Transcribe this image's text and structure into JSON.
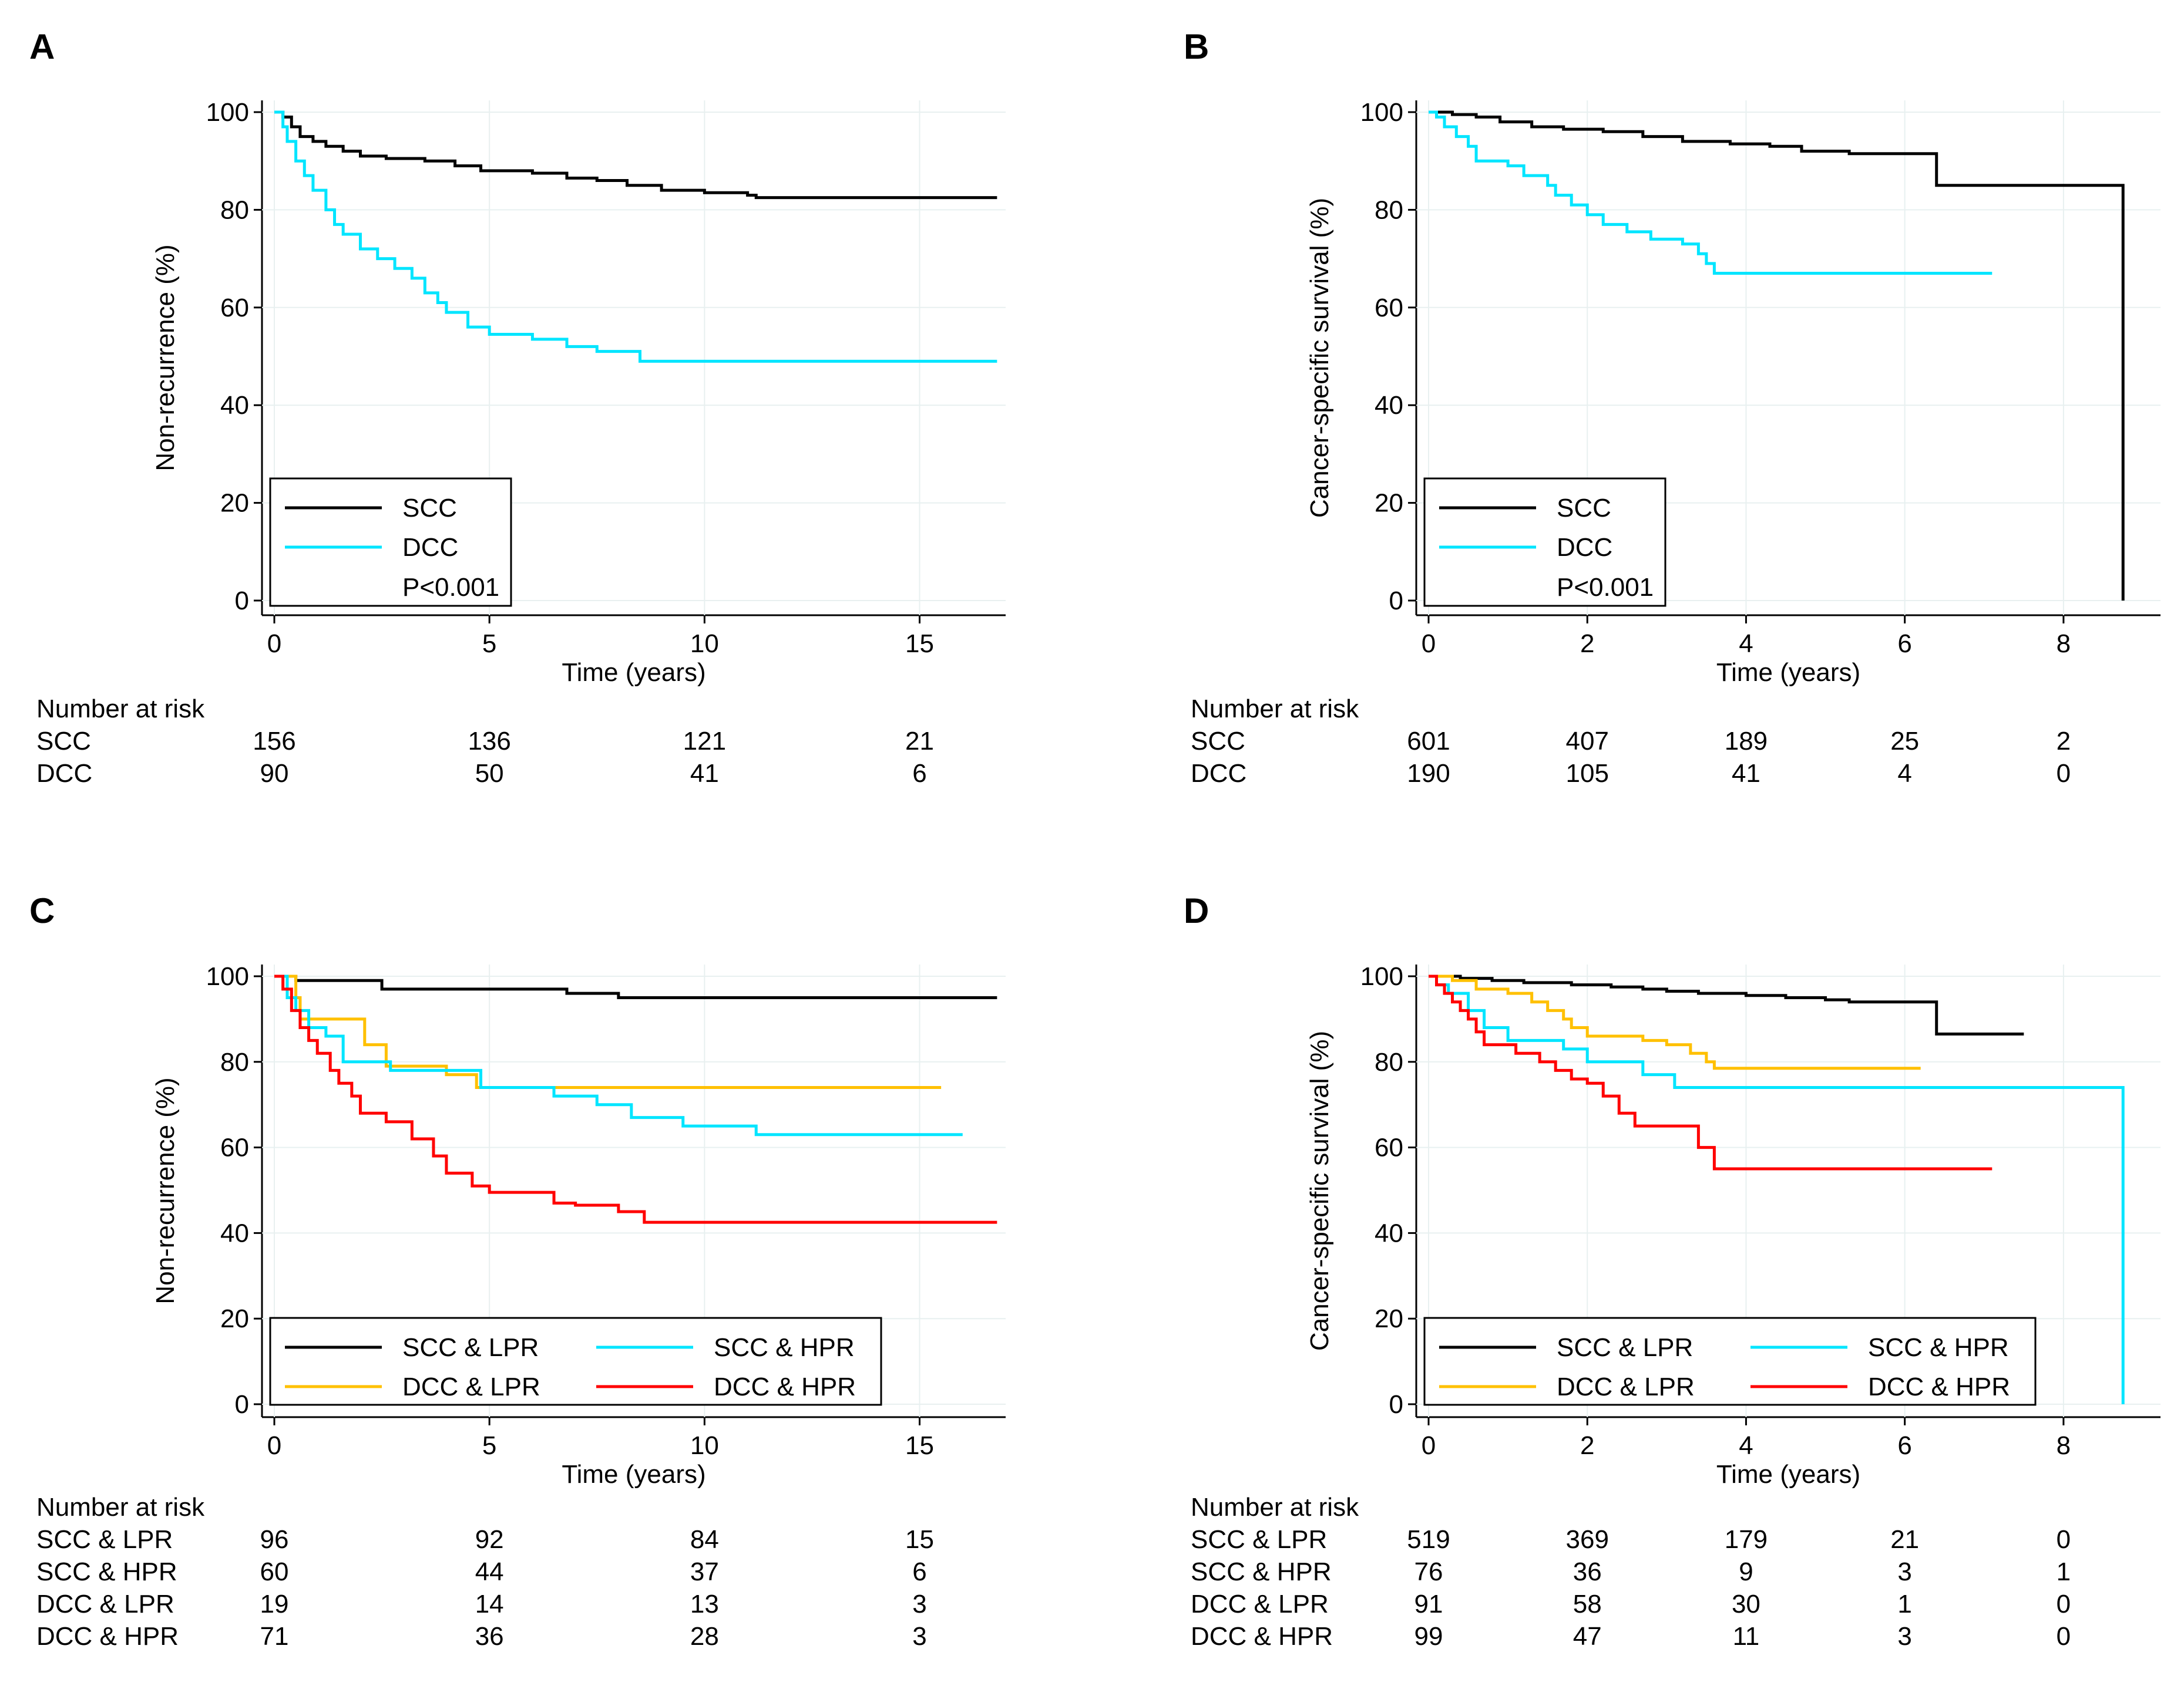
{
  "chart_data": [
    {
      "panel": "A",
      "type": "line",
      "subtype": "kaplan-meier",
      "ylabel": "Non-recurrence (%)",
      "xlabel": "Time (years)",
      "xlim": [
        0,
        17
      ],
      "ylim": [
        0,
        100
      ],
      "xticks": [
        0,
        5,
        10,
        15
      ],
      "yticks": [
        0,
        20,
        40,
        60,
        80,
        100
      ],
      "legend": {
        "placement": "bottom-left",
        "columns": 1,
        "note": "P<0.001"
      },
      "series": [
        {
          "name": "SCC",
          "color": "#000000",
          "steps": [
            [
              0,
              100
            ],
            [
              0.2,
              99
            ],
            [
              0.4,
              97
            ],
            [
              0.6,
              95
            ],
            [
              0.9,
              94
            ],
            [
              1.2,
              93
            ],
            [
              1.6,
              92
            ],
            [
              2.0,
              91
            ],
            [
              2.6,
              90.5
            ],
            [
              3.5,
              90
            ],
            [
              4.2,
              89
            ],
            [
              4.8,
              88
            ],
            [
              6.0,
              87.5
            ],
            [
              6.8,
              86.5
            ],
            [
              7.5,
              86
            ],
            [
              8.2,
              85
            ],
            [
              9.0,
              84
            ],
            [
              10.0,
              83.5
            ],
            [
              11.0,
              83
            ],
            [
              11.2,
              82.5
            ],
            [
              16.8,
              82.5
            ]
          ]
        },
        {
          "name": "DCC",
          "color": "#00E5FF",
          "steps": [
            [
              0,
              100
            ],
            [
              0.2,
              97
            ],
            [
              0.3,
              94
            ],
            [
              0.5,
              90
            ],
            [
              0.7,
              87
            ],
            [
              0.9,
              84
            ],
            [
              1.2,
              80
            ],
            [
              1.4,
              77
            ],
            [
              1.6,
              75
            ],
            [
              2.0,
              72
            ],
            [
              2.4,
              70
            ],
            [
              2.8,
              68
            ],
            [
              3.2,
              66
            ],
            [
              3.5,
              63
            ],
            [
              3.8,
              61
            ],
            [
              4.0,
              59
            ],
            [
              4.5,
              56
            ],
            [
              5.0,
              54.5
            ],
            [
              6.0,
              53.5
            ],
            [
              6.8,
              52
            ],
            [
              7.5,
              51
            ],
            [
              8.5,
              49
            ],
            [
              16.8,
              49
            ]
          ]
        }
      ],
      "risk_table": {
        "header": "Number at risk",
        "times": [
          0,
          5,
          10,
          15
        ],
        "rows": [
          {
            "label": "SCC",
            "values": [
              "156",
              "136",
              "121",
              "21"
            ]
          },
          {
            "label": "DCC",
            "values": [
              "90",
              "50",
              "41",
              "6"
            ]
          }
        ]
      }
    },
    {
      "panel": "B",
      "type": "line",
      "subtype": "kaplan-meier",
      "ylabel": "Cancer-specific survival (%)",
      "xlabel": "Time (years)",
      "xlim": [
        0,
        9
      ],
      "ylim": [
        0,
        100
      ],
      "xticks": [
        0,
        2,
        4,
        6,
        8
      ],
      "yticks": [
        0,
        20,
        40,
        60,
        80,
        100
      ],
      "legend": {
        "placement": "bottom-left",
        "columns": 1,
        "note": "P<0.001"
      },
      "series": [
        {
          "name": "SCC",
          "color": "#000000",
          "steps": [
            [
              0,
              100
            ],
            [
              0.3,
              99.5
            ],
            [
              0.6,
              99
            ],
            [
              0.9,
              98
            ],
            [
              1.3,
              97
            ],
            [
              1.7,
              96.5
            ],
            [
              2.2,
              96
            ],
            [
              2.7,
              95
            ],
            [
              3.2,
              94
            ],
            [
              3.8,
              93.5
            ],
            [
              4.3,
              93
            ],
            [
              4.7,
              92
            ],
            [
              5.3,
              91.5
            ],
            [
              6.4,
              85
            ],
            [
              8.75,
              85
            ],
            [
              8.75,
              0
            ]
          ]
        },
        {
          "name": "DCC",
          "color": "#00E5FF",
          "steps": [
            [
              0,
              100
            ],
            [
              0.1,
              99
            ],
            [
              0.2,
              97
            ],
            [
              0.35,
              95
            ],
            [
              0.5,
              93
            ],
            [
              0.6,
              90
            ],
            [
              1.0,
              89
            ],
            [
              1.2,
              87
            ],
            [
              1.5,
              85
            ],
            [
              1.6,
              83
            ],
            [
              1.8,
              81
            ],
            [
              2.0,
              79
            ],
            [
              2.2,
              77
            ],
            [
              2.5,
              75.5
            ],
            [
              2.8,
              74
            ],
            [
              3.2,
              73
            ],
            [
              3.4,
              71
            ],
            [
              3.5,
              69
            ],
            [
              3.6,
              67
            ],
            [
              7.1,
              67
            ]
          ]
        }
      ],
      "risk_table": {
        "header": "Number at risk",
        "times": [
          0,
          2,
          4,
          6,
          8
        ],
        "rows": [
          {
            "label": "SCC",
            "values": [
              "601",
              "407",
              "189",
              "25",
              "2"
            ]
          },
          {
            "label": "DCC",
            "values": [
              "190",
              "105",
              "41",
              "4",
              "0"
            ]
          }
        ]
      }
    },
    {
      "panel": "C",
      "type": "line",
      "subtype": "kaplan-meier",
      "ylabel": "Non-recurrence (%)",
      "xlabel": "Time (years)",
      "xlim": [
        0,
        17
      ],
      "ylim": [
        0,
        100
      ],
      "xticks": [
        0,
        5,
        10,
        15
      ],
      "yticks": [
        0,
        20,
        40,
        60,
        80,
        100
      ],
      "legend": {
        "placement": "bottom-left",
        "columns": 2,
        "note": ""
      },
      "series": [
        {
          "name": "SCC & LPR",
          "color": "#000000",
          "steps": [
            [
              0,
              100
            ],
            [
              0.5,
              99
            ],
            [
              2.5,
              97
            ],
            [
              6.8,
              96
            ],
            [
              8.0,
              95
            ],
            [
              16.8,
              95
            ]
          ]
        },
        {
          "name": "DCC & LPR",
          "color": "#FFC000",
          "steps": [
            [
              0,
              100
            ],
            [
              0.5,
              95
            ],
            [
              0.6,
              90
            ],
            [
              1.5,
              90
            ],
            [
              2.1,
              84
            ],
            [
              2.6,
              79
            ],
            [
              4.0,
              77
            ],
            [
              4.7,
              74
            ],
            [
              15.5,
              74
            ]
          ]
        },
        {
          "name": "SCC & HPR",
          "color": "#00E5FF",
          "steps": [
            [
              0,
              100
            ],
            [
              0.3,
              95
            ],
            [
              0.5,
              92
            ],
            [
              0.8,
              88
            ],
            [
              1.2,
              86
            ],
            [
              1.6,
              80
            ],
            [
              2.7,
              78
            ],
            [
              4.8,
              74
            ],
            [
              6.5,
              72
            ],
            [
              7.5,
              70
            ],
            [
              8.3,
              67
            ],
            [
              9.5,
              65
            ],
            [
              11.2,
              63
            ],
            [
              16,
              63
            ]
          ]
        },
        {
          "name": "DCC & HPR",
          "color": "#FF0000",
          "steps": [
            [
              0,
              100
            ],
            [
              0.2,
              97
            ],
            [
              0.4,
              92
            ],
            [
              0.6,
              88
            ],
            [
              0.8,
              85
            ],
            [
              1.0,
              82
            ],
            [
              1.3,
              78
            ],
            [
              1.5,
              75
            ],
            [
              1.8,
              72
            ],
            [
              2.0,
              68
            ],
            [
              2.6,
              66
            ],
            [
              3.2,
              62
            ],
            [
              3.7,
              58
            ],
            [
              4.0,
              54
            ],
            [
              4.6,
              51
            ],
            [
              5.0,
              49.5
            ],
            [
              6.5,
              47
            ],
            [
              7.0,
              46.5
            ],
            [
              8.0,
              45
            ],
            [
              8.6,
              42.5
            ],
            [
              16.8,
              42.5
            ]
          ]
        }
      ],
      "risk_table": {
        "header": "Number at risk",
        "times": [
          0,
          5,
          10,
          15
        ],
        "rows": [
          {
            "label": "SCC & LPR",
            "values": [
              "96",
              "92",
              "84",
              "15"
            ]
          },
          {
            "label": "SCC & HPR",
            "values": [
              "60",
              "44",
              "37",
              "6"
            ]
          },
          {
            "label": "DCC & LPR",
            "values": [
              "19",
              "14",
              "13",
              "3"
            ]
          },
          {
            "label": "DCC & HPR",
            "values": [
              "71",
              "36",
              "28",
              "3"
            ]
          }
        ]
      }
    },
    {
      "panel": "D",
      "type": "line",
      "subtype": "kaplan-meier",
      "ylabel": "Cancer-specific survival (%)",
      "xlabel": "Time (years)",
      "xlim": [
        0,
        9
      ],
      "ylim": [
        0,
        100
      ],
      "xticks": [
        0,
        2,
        4,
        6,
        8
      ],
      "yticks": [
        0,
        20,
        40,
        60,
        80,
        100
      ],
      "legend": {
        "placement": "bottom-left",
        "columns": 2,
        "note": ""
      },
      "series": [
        {
          "name": "SCC & LPR",
          "color": "#000000",
          "steps": [
            [
              0,
              100
            ],
            [
              0.4,
              99.5
            ],
            [
              0.8,
              99
            ],
            [
              1.2,
              98.5
            ],
            [
              1.8,
              98
            ],
            [
              2.3,
              97.5
            ],
            [
              2.7,
              97
            ],
            [
              3.0,
              96.5
            ],
            [
              3.4,
              96
            ],
            [
              4.0,
              95.5
            ],
            [
              4.5,
              95
            ],
            [
              5.0,
              94.5
            ],
            [
              5.3,
              94
            ],
            [
              6.4,
              86.5
            ],
            [
              7.5,
              86.5
            ]
          ]
        },
        {
          "name": "DCC & LPR",
          "color": "#FFC000",
          "steps": [
            [
              0,
              100
            ],
            [
              0.3,
              99
            ],
            [
              0.6,
              97
            ],
            [
              1.0,
              96
            ],
            [
              1.3,
              94
            ],
            [
              1.5,
              92
            ],
            [
              1.7,
              90
            ],
            [
              1.8,
              88
            ],
            [
              2.0,
              86
            ],
            [
              2.7,
              85
            ],
            [
              3.0,
              84
            ],
            [
              3.3,
              82
            ],
            [
              3.5,
              80
            ],
            [
              3.6,
              78.5
            ],
            [
              6.2,
              78.5
            ]
          ]
        },
        {
          "name": "SCC & HPR",
          "color": "#00E5FF",
          "steps": [
            [
              0,
              100
            ],
            [
              0.1,
              98
            ],
            [
              0.25,
              96
            ],
            [
              0.5,
              92
            ],
            [
              0.7,
              88
            ],
            [
              1.0,
              85
            ],
            [
              1.7,
              83
            ],
            [
              2.0,
              80
            ],
            [
              2.7,
              77
            ],
            [
              3.1,
              74
            ],
            [
              8.75,
              74
            ],
            [
              8.75,
              0
            ]
          ]
        },
        {
          "name": "DCC & HPR",
          "color": "#FF0000",
          "steps": [
            [
              0,
              100
            ],
            [
              0.1,
              98
            ],
            [
              0.2,
              96
            ],
            [
              0.3,
              94
            ],
            [
              0.4,
              92
            ],
            [
              0.5,
              90
            ],
            [
              0.6,
              87
            ],
            [
              0.7,
              84
            ],
            [
              1.1,
              82
            ],
            [
              1.4,
              80
            ],
            [
              1.6,
              78
            ],
            [
              1.8,
              76
            ],
            [
              2.0,
              75
            ],
            [
              2.2,
              72
            ],
            [
              2.4,
              68
            ],
            [
              2.6,
              65
            ],
            [
              3.4,
              60
            ],
            [
              3.6,
              55
            ],
            [
              7.1,
              55
            ]
          ]
        }
      ],
      "risk_table": {
        "header": "Number at risk",
        "times": [
          0,
          2,
          4,
          6,
          8
        ],
        "rows": [
          {
            "label": "SCC & LPR",
            "values": [
              "519",
              "369",
              "179",
              "21",
              "0"
            ]
          },
          {
            "label": "SCC & HPR",
            "values": [
              "76",
              "36",
              "9",
              "3",
              "1"
            ]
          },
          {
            "label": "DCC & LPR",
            "values": [
              "91",
              "58",
              "30",
              "1",
              "0"
            ]
          },
          {
            "label": "DCC & HPR",
            "values": [
              "99",
              "47",
              "11",
              "3",
              "0"
            ]
          }
        ]
      }
    }
  ]
}
